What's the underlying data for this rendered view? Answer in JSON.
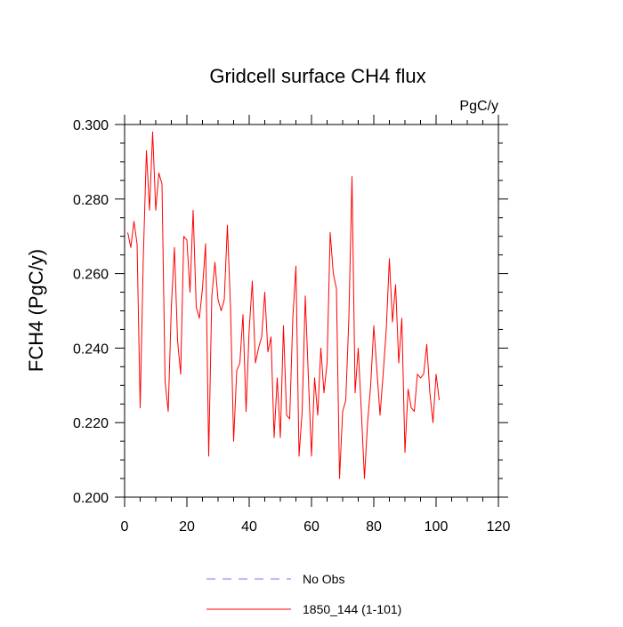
{
  "chart_data": {
    "type": "line",
    "title": "Gridcell surface CH4 flux",
    "units": "PgC/y",
    "ylabel": "FCH4  (PgC/y)",
    "xlabel": "",
    "xlim": [
      0,
      120
    ],
    "ylim": [
      0.2,
      0.3
    ],
    "x_ticks": [
      0,
      20,
      40,
      60,
      80,
      100,
      120
    ],
    "x_tick_labels": [
      "0",
      "20",
      "40",
      "60",
      "80",
      "100",
      "120"
    ],
    "y_ticks": [
      0.2,
      0.22,
      0.24,
      0.26,
      0.28,
      0.3
    ],
    "y_tick_labels": [
      "0.200",
      "0.220",
      "0.240",
      "0.260",
      "0.280",
      "0.300"
    ],
    "grid": false,
    "legend_position": "bottom",
    "series": [
      {
        "name": "No Obs",
        "color": "#7777ff",
        "style": "dashed",
        "x": [],
        "y": []
      },
      {
        "name": "1850_144 (1-101)",
        "color": "#ff0000",
        "style": "solid",
        "x": [
          1,
          2,
          3,
          4,
          5,
          6,
          7,
          8,
          9,
          10,
          11,
          12,
          13,
          14,
          15,
          16,
          17,
          18,
          19,
          20,
          21,
          22,
          23,
          24,
          25,
          26,
          27,
          28,
          29,
          30,
          31,
          32,
          33,
          34,
          35,
          36,
          37,
          38,
          39,
          40,
          41,
          42,
          43,
          44,
          45,
          46,
          47,
          48,
          49,
          50,
          51,
          52,
          53,
          54,
          55,
          56,
          57,
          58,
          59,
          60,
          61,
          62,
          63,
          64,
          65,
          66,
          67,
          68,
          69,
          70,
          71,
          72,
          73,
          74,
          75,
          76,
          77,
          78,
          79,
          80,
          81,
          82,
          83,
          84,
          85,
          86,
          87,
          88,
          89,
          90,
          91,
          92,
          93,
          94,
          95,
          96,
          97,
          98,
          99,
          100,
          101
        ],
        "y": [
          0.271,
          0.267,
          0.274,
          0.268,
          0.224,
          0.264,
          0.293,
          0.277,
          0.298,
          0.277,
          0.287,
          0.284,
          0.231,
          0.223,
          0.251,
          0.267,
          0.242,
          0.233,
          0.27,
          0.269,
          0.255,
          0.277,
          0.251,
          0.248,
          0.256,
          0.268,
          0.211,
          0.254,
          0.263,
          0.253,
          0.25,
          0.253,
          0.273,
          0.251,
          0.215,
          0.234,
          0.236,
          0.249,
          0.223,
          0.245,
          0.258,
          0.236,
          0.24,
          0.243,
          0.255,
          0.239,
          0.243,
          0.216,
          0.232,
          0.216,
          0.246,
          0.222,
          0.221,
          0.248,
          0.262,
          0.211,
          0.223,
          0.254,
          0.232,
          0.211,
          0.232,
          0.222,
          0.24,
          0.228,
          0.236,
          0.271,
          0.26,
          0.256,
          0.205,
          0.223,
          0.226,
          0.248,
          0.286,
          0.228,
          0.24,
          0.223,
          0.205,
          0.22,
          0.23,
          0.246,
          0.234,
          0.222,
          0.233,
          0.245,
          0.264,
          0.247,
          0.257,
          0.236,
          0.248,
          0.212,
          0.229,
          0.224,
          0.223,
          0.233,
          0.232,
          0.233,
          0.241,
          0.228,
          0.22,
          0.233,
          0.226
        ]
      }
    ]
  }
}
